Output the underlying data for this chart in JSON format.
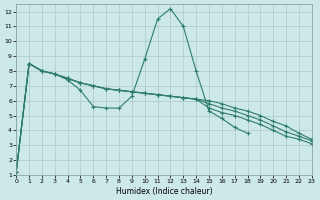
{
  "xlabel": "Humidex (Indice chaleur)",
  "bg_color": "#cce8e8",
  "grid_color": "#adc8c8",
  "line_color": "#2e7d6e",
  "xlim": [
    0,
    23
  ],
  "ylim": [
    1,
    12.5
  ],
  "xticks": [
    0,
    1,
    2,
    3,
    4,
    5,
    6,
    7,
    8,
    9,
    10,
    11,
    12,
    13,
    14,
    15,
    16,
    17,
    18,
    19,
    20,
    21,
    22,
    23
  ],
  "yticks": [
    1,
    2,
    3,
    4,
    5,
    6,
    7,
    8,
    9,
    10,
    11,
    12
  ],
  "series": [
    {
      "x": [
        0,
        1,
        2,
        3,
        4,
        5,
        6,
        7,
        8,
        9,
        10,
        11,
        12,
        13,
        14,
        15,
        16,
        17,
        18,
        19,
        20,
        21,
        22,
        23
      ],
      "y": [
        1.2,
        8.5,
        8.0,
        7.8,
        7.4,
        6.7,
        5.6,
        5.5,
        5.5,
        6.3,
        8.8,
        11.5,
        12.2,
        11.0,
        8.0,
        5.3,
        4.8,
        4.2,
        3.8,
        null,
        null,
        null,
        null,
        null
      ]
    },
    {
      "x": [
        0,
        1,
        2,
        3,
        4,
        5,
        6,
        7,
        8,
        9,
        10,
        11,
        12,
        13,
        14,
        15,
        16,
        17,
        18,
        19,
        20,
        21,
        22,
        23
      ],
      "y": [
        1.2,
        8.5,
        8.0,
        7.8,
        7.5,
        7.2,
        7.0,
        6.8,
        6.7,
        6.6,
        6.5,
        6.4,
        6.3,
        6.2,
        6.1,
        6.0,
        5.8,
        5.5,
        5.3,
        5.0,
        4.6,
        4.3,
        3.8,
        3.4
      ]
    },
    {
      "x": [
        0,
        1,
        2,
        3,
        4,
        5,
        6,
        7,
        8,
        9,
        10,
        11,
        12,
        13,
        14,
        15,
        16,
        17,
        18,
        19,
        20,
        21,
        22,
        23
      ],
      "y": [
        1.2,
        8.5,
        8.0,
        7.8,
        7.5,
        7.2,
        7.0,
        6.8,
        6.7,
        6.6,
        6.5,
        6.4,
        6.3,
        6.2,
        6.1,
        5.8,
        5.5,
        5.3,
        5.0,
        4.7,
        4.3,
        3.9,
        3.6,
        3.3
      ]
    },
    {
      "x": [
        0,
        1,
        2,
        3,
        4,
        5,
        6,
        7,
        8,
        9,
        10,
        11,
        12,
        13,
        14,
        15,
        16,
        17,
        18,
        19,
        20,
        21,
        22,
        23
      ],
      "y": [
        1.2,
        8.5,
        8.0,
        7.8,
        7.5,
        7.2,
        7.0,
        6.8,
        6.7,
        6.6,
        6.5,
        6.4,
        6.3,
        6.2,
        6.1,
        5.5,
        5.2,
        5.0,
        4.7,
        4.4,
        4.0,
        3.6,
        3.4,
        3.1
      ]
    }
  ]
}
